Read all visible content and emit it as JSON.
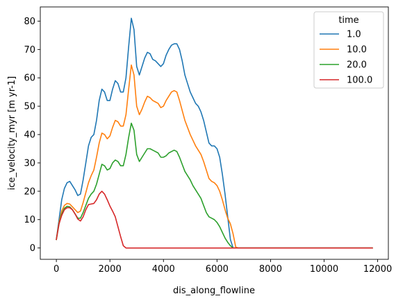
{
  "chart_data": {
    "type": "line",
    "title": "",
    "xlabel": "dis_along_flowline",
    "ylabel": "ice_velocity_myr [m yr-1]",
    "xlim": [
      -600,
      12400
    ],
    "ylim": [
      -4,
      85
    ],
    "xticks": [
      0,
      2000,
      4000,
      6000,
      8000,
      10000,
      12000
    ],
    "yticks": [
      0,
      10,
      20,
      30,
      40,
      50,
      60,
      70,
      80
    ],
    "grid": false,
    "legend": {
      "title": "time",
      "position": "top-right"
    },
    "series": [
      {
        "name": "1.0",
        "color": "#1f77b4",
        "x": [
          0,
          100,
          200,
          300,
          400,
          500,
          600,
          700,
          800,
          900,
          1000,
          1100,
          1200,
          1300,
          1400,
          1500,
          1600,
          1700,
          1800,
          1900,
          2000,
          2100,
          2200,
          2300,
          2400,
          2500,
          2600,
          2700,
          2800,
          2900,
          3000,
          3100,
          3200,
          3300,
          3400,
          3500,
          3600,
          3700,
          3800,
          3900,
          4000,
          4100,
          4200,
          4300,
          4400,
          4500,
          4600,
          4700,
          4800,
          4900,
          5000,
          5100,
          5200,
          5300,
          5400,
          5500,
          5600,
          5700,
          5800,
          5900,
          6000,
          6100,
          6200,
          6300,
          6400,
          6500,
          6600,
          6700,
          6800,
          7000,
          8000,
          9000,
          10000,
          11000,
          11800
        ],
        "y": [
          3,
          10,
          17,
          21,
          23,
          23.5,
          22,
          20.5,
          18.5,
          19,
          24,
          30,
          36,
          39,
          40,
          45,
          52,
          56,
          55,
          52,
          52,
          56,
          59,
          58,
          55,
          55,
          60,
          71,
          81,
          77,
          64,
          61,
          64,
          67,
          69,
          68.5,
          66.5,
          66,
          65,
          64,
          65,
          68,
          70,
          71.5,
          72,
          72,
          70,
          66,
          61,
          58,
          55,
          53,
          51,
          50,
          48,
          45,
          41,
          37,
          36,
          36,
          35,
          32,
          26,
          19,
          11,
          3,
          0,
          0,
          0,
          0,
          0,
          0,
          0,
          0,
          0
        ]
      },
      {
        "name": "10.0",
        "color": "#ff7f0e",
        "x": [
          0,
          100,
          200,
          300,
          400,
          500,
          600,
          700,
          800,
          900,
          1000,
          1100,
          1200,
          1300,
          1400,
          1500,
          1600,
          1700,
          1800,
          1900,
          2000,
          2100,
          2200,
          2300,
          2400,
          2500,
          2600,
          2700,
          2800,
          2900,
          3000,
          3100,
          3200,
          3300,
          3400,
          3500,
          3600,
          3700,
          3800,
          3900,
          4000,
          4100,
          4200,
          4300,
          4400,
          4500,
          4600,
          4700,
          4800,
          4900,
          5000,
          5100,
          5200,
          5300,
          5400,
          5500,
          5600,
          5700,
          5800,
          5900,
          6000,
          6100,
          6200,
          6300,
          6400,
          6500,
          6600,
          6700,
          6800,
          7000,
          8000,
          9000,
          10000,
          11000,
          11800
        ],
        "y": [
          3,
          9,
          13,
          15,
          15.7,
          15.5,
          14.5,
          13.5,
          12.5,
          13,
          16,
          19.5,
          23,
          25.5,
          27.5,
          32,
          37,
          40.5,
          40,
          38.5,
          39.5,
          42.5,
          45,
          44.5,
          43,
          43,
          47,
          56,
          64.5,
          61,
          50,
          47,
          49,
          51.5,
          53.5,
          53,
          52,
          51.5,
          51,
          49.5,
          50,
          52,
          53.5,
          55,
          55.5,
          55,
          52,
          48.5,
          45,
          42.5,
          40,
          38,
          36,
          34.5,
          33,
          30.5,
          27.5,
          24.5,
          23.5,
          23,
          22,
          20,
          17,
          13.5,
          10.5,
          8.5,
          5,
          0.3,
          0,
          0,
          0,
          0,
          0,
          0,
          0
        ]
      },
      {
        "name": "20.0",
        "color": "#2ca02c",
        "x": [
          0,
          100,
          200,
          300,
          400,
          500,
          600,
          700,
          800,
          900,
          1000,
          1100,
          1200,
          1300,
          1400,
          1500,
          1600,
          1700,
          1800,
          1900,
          2000,
          2100,
          2200,
          2300,
          2400,
          2500,
          2600,
          2700,
          2800,
          2900,
          3000,
          3100,
          3200,
          3300,
          3400,
          3500,
          3600,
          3700,
          3800,
          3900,
          4000,
          4100,
          4200,
          4300,
          4400,
          4500,
          4600,
          4700,
          4800,
          4900,
          5000,
          5100,
          5200,
          5300,
          5400,
          5500,
          5600,
          5700,
          5800,
          5900,
          6000,
          6100,
          6200,
          6300,
          6400,
          6500,
          6600,
          6700,
          6800,
          7000,
          8000,
          9000,
          10000,
          11000,
          11800
        ],
        "y": [
          3,
          8.5,
          12,
          14,
          14.7,
          14.5,
          13.5,
          12,
          10.5,
          10.5,
          12.5,
          15,
          17.5,
          19,
          20,
          22.5,
          26,
          29.5,
          29,
          27.5,
          28,
          30,
          31,
          30.5,
          29,
          29,
          33,
          39,
          44,
          41.5,
          33,
          30.5,
          32,
          33.5,
          35,
          35,
          34.5,
          34,
          33.5,
          32,
          32,
          32.5,
          33.5,
          34,
          34.5,
          34,
          32,
          29.5,
          27,
          25.5,
          24,
          22,
          20.5,
          19,
          17.5,
          15,
          12.5,
          11,
          10.5,
          10,
          9,
          7.5,
          5.5,
          3.5,
          2,
          0.8,
          0,
          0,
          0,
          0,
          0,
          0,
          0,
          0,
          0
        ]
      },
      {
        "name": "100.0",
        "color": "#d62728",
        "x": [
          0,
          100,
          200,
          300,
          400,
          500,
          600,
          700,
          800,
          900,
          1000,
          1100,
          1200,
          1300,
          1400,
          1500,
          1600,
          1700,
          1800,
          1900,
          2000,
          2100,
          2200,
          2300,
          2400,
          2500,
          2600,
          2700,
          2800,
          3000,
          4000,
          5000,
          6000,
          7000,
          8000,
          9000,
          10000,
          11000,
          11800
        ],
        "y": [
          3,
          8.5,
          11.5,
          13.5,
          14.2,
          14.2,
          13.5,
          12,
          10.2,
          9.5,
          11,
          13.5,
          15.3,
          15.5,
          15.7,
          17,
          19,
          20,
          19,
          17,
          14.8,
          13,
          11,
          7.5,
          4,
          0.8,
          0,
          0,
          0,
          0,
          0,
          0,
          0,
          0,
          0,
          0,
          0,
          0,
          0
        ]
      }
    ]
  }
}
